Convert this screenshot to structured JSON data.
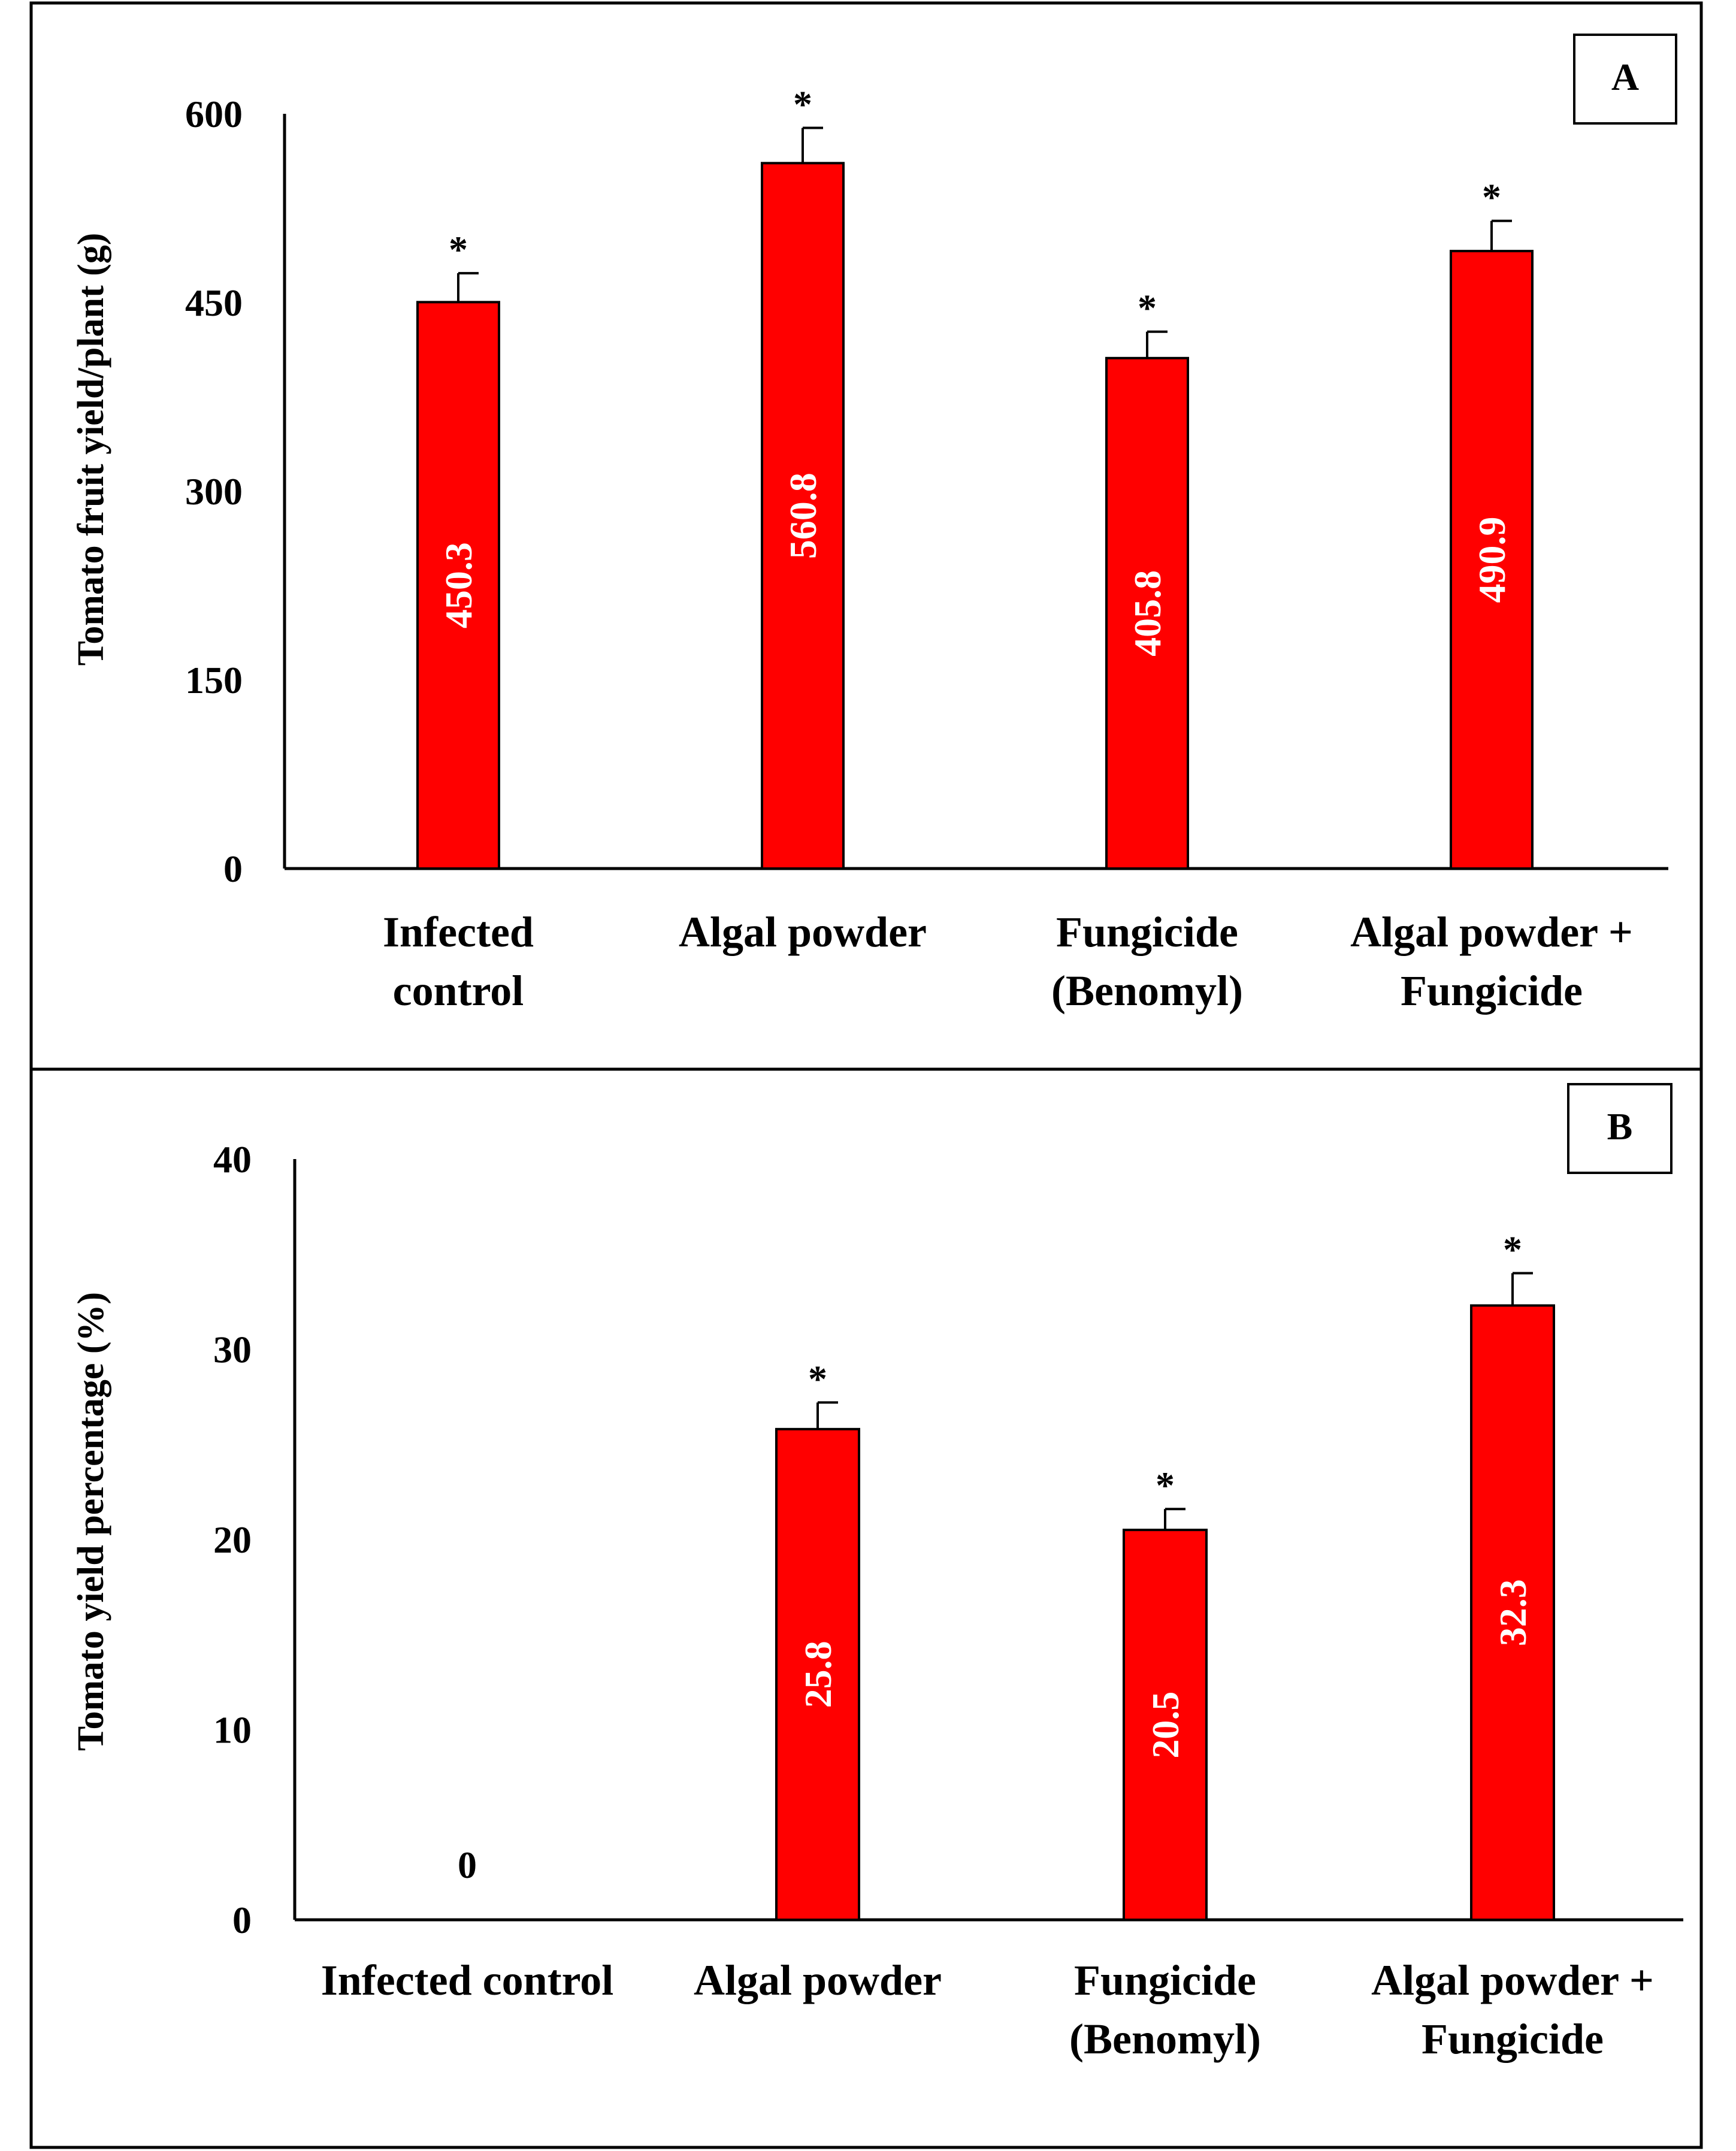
{
  "colors": {
    "bar": "#ff0000",
    "bar_stroke": "#000000",
    "axis": "#000000",
    "label_inside": "#ffffff"
  },
  "chart_data": [
    {
      "panel": "A",
      "type": "bar",
      "ylabel": "Tomato fruit yield/plant (g)",
      "ylim": [
        0,
        600
      ],
      "yticks": [
        "0",
        "150",
        "300",
        "450",
        "600"
      ],
      "categories": [
        [
          "Infected",
          "control"
        ],
        [
          "Algal powder"
        ],
        [
          "Fungicide",
          "(Benomyl)"
        ],
        [
          "Algal powder +",
          "Fungicide"
        ]
      ],
      "values": [
        450.3,
        560.8,
        405.8,
        490.9
      ],
      "value_labels": [
        "450.3",
        "560.8",
        "405.8",
        "490.9"
      ],
      "errors": [
        23,
        28,
        21,
        24
      ],
      "significance": [
        "*",
        "*",
        "*",
        "*"
      ]
    },
    {
      "panel": "B",
      "type": "bar",
      "ylabel": "Tomato yield percentage (%)",
      "ylim": [
        0,
        40
      ],
      "yticks": [
        "0",
        "10",
        "20",
        "30",
        "40"
      ],
      "categories": [
        [
          "Infected control"
        ],
        [
          "Algal powder"
        ],
        [
          "Fungicide",
          "(Benomyl)"
        ],
        [
          "Algal powder +",
          "Fungicide"
        ]
      ],
      "values": [
        0,
        25.8,
        20.5,
        32.3
      ],
      "value_labels": [
        "0",
        "25.8",
        "20.5",
        "32.3"
      ],
      "errors": [
        0,
        1.4,
        1.1,
        1.7
      ],
      "significance": [
        "",
        "*",
        "*",
        "*"
      ]
    }
  ]
}
